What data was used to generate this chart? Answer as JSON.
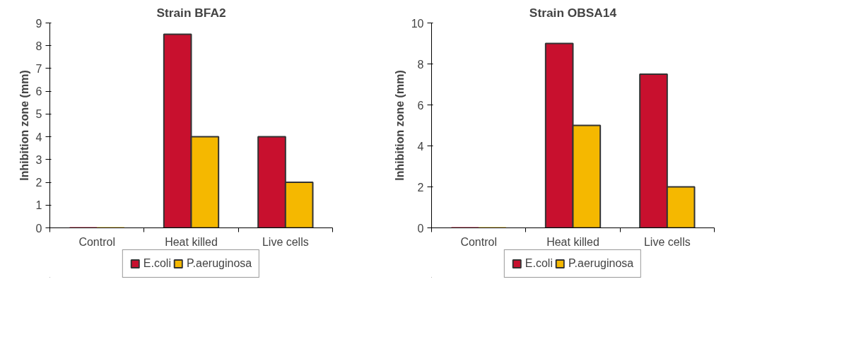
{
  "chart_data": [
    {
      "type": "bar",
      "title": "Strain BFA2",
      "ylabel": "Inhibition zone (mm)",
      "categories": [
        "Control",
        "Heat killed",
        "Live cells"
      ],
      "series": [
        {
          "name": "E.coli",
          "color": "#c8102e",
          "values": [
            0,
            8.5,
            4
          ]
        },
        {
          "name": "P.aeruginosa",
          "color": "#f5b800",
          "values": [
            0,
            4,
            2
          ]
        }
      ],
      "ylim": [
        0,
        9
      ],
      "yticks": [
        0,
        1,
        2,
        3,
        4,
        5,
        6,
        7,
        8,
        9
      ],
      "grid": false,
      "legend": "bottom"
    },
    {
      "type": "bar",
      "title": "Strain OBSA14",
      "ylabel": "Inhibition zone (mm)",
      "categories": [
        "Control",
        "Heat killed",
        "Live cells"
      ],
      "series": [
        {
          "name": "E.coli",
          "color": "#c8102e",
          "values": [
            0,
            9,
            7.5
          ]
        },
        {
          "name": "P.aeruginosa",
          "color": "#f5b800",
          "values": [
            0,
            5,
            2
          ]
        }
      ],
      "ylim": [
        0,
        10
      ],
      "yticks": [
        0,
        2,
        4,
        6,
        8,
        10
      ],
      "grid": false,
      "legend": "bottom"
    }
  ]
}
